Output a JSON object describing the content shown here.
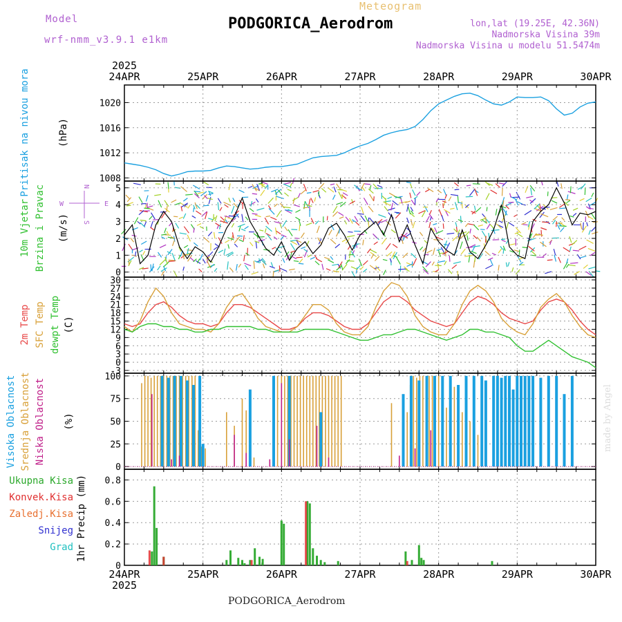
{
  "header": {
    "model_label": "Model",
    "model_run": "wrf-nmm_v3.9.1 e1km",
    "chart_type": "Meteogram",
    "station": "PODGORICA_Aerodrom",
    "lonlat": "lon,lat (19.25E, 42.36N)",
    "elevation": "Nadmorska Visina 39m",
    "model_elevation": "Nadmorska Visina u modelu 51.5474m"
  },
  "footer": {
    "station": "PODGORICA_Aerodrom"
  },
  "credit": "made by Angel",
  "colors": {
    "pressure": "#1aa0e0",
    "wind_speed": "#000000",
    "gust": "#e03030",
    "t2m": "#e84848",
    "tsfc": "#d8a038",
    "dewpt": "#30c030",
    "cloud_high": "#1aa0e0",
    "cloud_mid": "#d8a038",
    "cloud_low": "#c0208a",
    "precip_total": "#2aa82a",
    "precip_conv": "#e03030",
    "precip_frz": "#e87030",
    "snow": "#3030d0",
    "hail": "#20c0c0",
    "purple": "#b060d0"
  },
  "chart_data": [
    {
      "type": "line",
      "panel": "pressure",
      "ylabel_lines": [
        "Pritisak na nivou mora",
        "(hPa)"
      ],
      "yticks": [
        "1008",
        "1012",
        "1016",
        "1020"
      ],
      "ylim": [
        1007.5,
        1022.8
      ],
      "x_top_labels": [
        "24APR",
        "25APR",
        "26APR",
        "27APR",
        "28APR",
        "29APR",
        "30APR"
      ],
      "x_top_year": "2025",
      "series": [
        {
          "x": [
            0,
            0.1,
            0.2,
            0.3,
            0.4,
            0.5,
            0.6,
            0.7,
            0.8,
            0.9,
            1.0,
            1.1,
            1.2,
            1.3,
            1.4,
            1.5,
            1.6,
            1.7,
            1.8,
            1.9,
            2.0,
            2.1,
            2.2,
            2.3,
            2.4,
            2.5,
            2.6,
            2.7,
            2.8,
            2.9,
            3.0,
            3.1,
            3.2,
            3.3,
            3.4,
            3.5,
            3.6,
            3.7,
            3.8,
            3.9,
            4.0,
            4.1,
            4.2,
            4.3,
            4.4,
            4.5,
            4.6,
            4.7,
            4.8,
            4.9,
            5.0,
            5.1,
            5.2,
            5.3,
            5.4,
            5.5,
            5.6,
            5.7,
            5.8,
            5.9,
            6.0
          ],
          "values": [
            1010.4,
            1010.2,
            1010.0,
            1009.7,
            1009.3,
            1008.7,
            1008.3,
            1008.6,
            1009.0,
            1009.1,
            1009.1,
            1009.2,
            1009.6,
            1009.9,
            1009.8,
            1009.6,
            1009.4,
            1009.5,
            1009.7,
            1009.8,
            1009.8,
            1010.0,
            1010.2,
            1010.7,
            1011.2,
            1011.4,
            1011.5,
            1011.6,
            1012.0,
            1012.6,
            1013.1,
            1013.5,
            1014.1,
            1014.8,
            1015.2,
            1015.5,
            1015.7,
            1016.2,
            1017.3,
            1018.7,
            1019.8,
            1020.4,
            1021.0,
            1021.4,
            1021.5,
            1021.1,
            1020.4,
            1019.8,
            1019.6,
            1020.1,
            1020.9,
            1020.8,
            1020.8,
            1020.9,
            1020.3,
            1019.0,
            1018.0,
            1018.3,
            1019.3,
            1019.9,
            1020.1
          ]
        }
      ]
    },
    {
      "type": "line",
      "panel": "wind",
      "ylabel_lines": [
        "10m Vjetar",
        "Brzina i Pravac",
        "(m/s)"
      ],
      "compass": {
        "n": "N",
        "w": "W",
        "e": "E",
        "s": "S"
      },
      "yticks": [
        "0",
        "1",
        "2",
        "3",
        "4",
        "5"
      ],
      "ylim": [
        -0.3,
        5.4
      ],
      "series": [
        {
          "name": "speed",
          "x": [
            0,
            0.1,
            0.2,
            0.3,
            0.4,
            0.5,
            0.6,
            0.7,
            0.8,
            0.9,
            1.0,
            1.1,
            1.2,
            1.3,
            1.4,
            1.5,
            1.6,
            1.7,
            1.8,
            1.9,
            2.0,
            2.1,
            2.2,
            2.3,
            2.4,
            2.5,
            2.6,
            2.7,
            2.8,
            2.9,
            3.0,
            3.1,
            3.2,
            3.3,
            3.4,
            3.5,
            3.6,
            3.7,
            3.8,
            3.9,
            4.0,
            4.1,
            4.2,
            4.3,
            4.4,
            4.5,
            4.6,
            4.7,
            4.8,
            4.9,
            5.0,
            5.1,
            5.2,
            5.3,
            5.4,
            5.5,
            5.6,
            5.7,
            5.8,
            5.9,
            6.0
          ],
          "values": [
            2.2,
            2.8,
            0.5,
            1.0,
            2.8,
            3.6,
            3.0,
            1.5,
            0.8,
            1.5,
            1.2,
            0.6,
            1.5,
            2.6,
            3.3,
            4.4,
            3.0,
            2.2,
            1.4,
            1.0,
            1.8,
            0.7,
            1.4,
            1.8,
            1.1,
            1.6,
            2.6,
            2.9,
            2.2,
            1.3,
            2.2,
            2.6,
            3.0,
            2.2,
            3.4,
            1.8,
            2.8,
            1.6,
            0.5,
            2.6,
            1.8,
            1.3,
            1.0,
            2.5,
            1.2,
            0.8,
            1.6,
            2.5,
            4.0,
            1.5,
            1.0,
            0.8,
            3.0,
            3.6,
            4.0,
            5.0,
            4.1,
            2.8,
            3.5,
            3.4,
            3.6
          ]
        }
      ]
    },
    {
      "type": "line",
      "panel": "temperature",
      "ylabel_lines": [
        "2m Temp",
        "SFC Temp",
        "dewpt Temp",
        "(C)"
      ],
      "yticks": [
        "-3",
        "0",
        "3",
        "6",
        "9",
        "12",
        "15",
        "18",
        "21",
        "24",
        "27",
        "30"
      ],
      "ylim": [
        -4,
        31
      ],
      "x": [
        0,
        0.1,
        0.2,
        0.3,
        0.4,
        0.5,
        0.6,
        0.7,
        0.8,
        0.9,
        1.0,
        1.1,
        1.2,
        1.3,
        1.4,
        1.5,
        1.6,
        1.7,
        1.8,
        1.9,
        2.0,
        2.1,
        2.2,
        2.3,
        2.4,
        2.5,
        2.6,
        2.7,
        2.8,
        2.9,
        3.0,
        3.1,
        3.2,
        3.3,
        3.4,
        3.5,
        3.6,
        3.7,
        3.8,
        3.9,
        4.0,
        4.1,
        4.2,
        4.3,
        4.4,
        4.5,
        4.6,
        4.7,
        4.8,
        4.9,
        5.0,
        5.1,
        5.2,
        5.3,
        5.4,
        5.5,
        5.6,
        5.7,
        5.8,
        5.9,
        6.0
      ],
      "series": [
        {
          "name": "2m Temp",
          "values": [
            14,
            13,
            14,
            18,
            21,
            22,
            20,
            17,
            15,
            14,
            14,
            13,
            14,
            18,
            21,
            21,
            20,
            18,
            16,
            14,
            12,
            12,
            13,
            16,
            18,
            18,
            17,
            15,
            13,
            12,
            12,
            14,
            18,
            22,
            24,
            24,
            22,
            19,
            17,
            15,
            14,
            13,
            14,
            18,
            22,
            24,
            23,
            21,
            18,
            16,
            15,
            14,
            15,
            19,
            22,
            23,
            22,
            19,
            15,
            12,
            10
          ]
        },
        {
          "name": "SFC Temp",
          "values": [
            13,
            11,
            15,
            22,
            27,
            24,
            18,
            14,
            13,
            12,
            12,
            11,
            14,
            20,
            24,
            25,
            21,
            16,
            13,
            12,
            11,
            11,
            13,
            17,
            21,
            21,
            19,
            14,
            11,
            10,
            10,
            13,
            20,
            26,
            29,
            28,
            24,
            17,
            13,
            11,
            10,
            10,
            14,
            21,
            26,
            28,
            26,
            22,
            16,
            13,
            11,
            10,
            14,
            20,
            23,
            25,
            22,
            17,
            13,
            10,
            9
          ]
        },
        {
          "name": "dewpt Temp",
          "values": [
            12,
            11,
            13,
            14,
            14,
            13,
            13,
            12,
            12,
            11,
            11,
            12,
            12,
            13,
            13,
            13,
            13,
            12,
            12,
            11,
            11,
            11,
            11,
            12,
            12,
            12,
            12,
            11,
            10,
            9,
            8,
            8,
            9,
            10,
            10,
            11,
            12,
            12,
            11,
            10,
            9,
            8,
            9,
            10,
            12,
            12,
            11,
            11,
            10,
            9,
            6,
            4,
            4,
            6,
            8,
            6,
            4,
            2,
            1,
            0,
            -2
          ]
        }
      ]
    },
    {
      "type": "bar",
      "panel": "clouds",
      "ylabel_lines": [
        "Visoka Oblacnost",
        "Srednja Oblacnost",
        "Niska Oblacnost",
        "(%)"
      ],
      "yticks": [
        "0",
        "25",
        "50",
        "75",
        "100"
      ],
      "ylim": [
        -3,
        103
      ],
      "series": [
        {
          "name": "Srednja Oblacnost",
          "x": [
            0.22,
            0.26,
            0.3,
            0.34,
            0.38,
            0.42,
            0.46,
            0.5,
            0.54,
            0.58,
            0.62,
            0.66,
            0.7,
            0.74,
            0.78,
            0.82,
            0.86,
            0.9,
            0.94,
            0.98,
            1.03,
            1.3,
            1.4,
            1.5,
            1.55,
            1.6,
            1.65,
            1.85,
            1.9,
            1.95,
            2.0,
            2.04,
            2.08,
            2.12,
            2.16,
            2.2,
            2.24,
            2.28,
            2.32,
            2.36,
            2.4,
            2.44,
            2.48,
            2.52,
            2.56,
            2.6,
            2.64,
            2.68,
            2.72,
            2.76,
            3.4,
            3.6,
            3.64,
            3.68,
            3.72,
            3.76,
            3.8,
            3.84,
            3.88,
            3.92,
            3.96,
            4.0,
            4.1,
            4.2,
            4.3,
            4.4,
            4.5,
            4.6
          ],
          "values": [
            92,
            100,
            100,
            98,
            100,
            100,
            100,
            100,
            100,
            100,
            100,
            100,
            100,
            100,
            100,
            100,
            100,
            100,
            40,
            22,
            20,
            60,
            45,
            75,
            62,
            15,
            10,
            5,
            95,
            100,
            100,
            100,
            100,
            100,
            100,
            100,
            100,
            100,
            100,
            100,
            100,
            100,
            100,
            100,
            100,
            100,
            100,
            100,
            100,
            100,
            70,
            60,
            90,
            100,
            98,
            100,
            100,
            100,
            100,
            100,
            95,
            100,
            65,
            88,
            60,
            50,
            35,
            40
          ]
        },
        {
          "name": "Visoka Oblacnost",
          "x": [
            0.48,
            0.56,
            0.64,
            0.72,
            0.8,
            0.88,
            0.96,
            1.0,
            1.6,
            1.9,
            2.1,
            2.5,
            3.55,
            3.65,
            3.75,
            3.85,
            3.95,
            4.05,
            4.15,
            4.25,
            4.35,
            4.45,
            4.55,
            4.6,
            4.7,
            4.75,
            4.8,
            4.85,
            4.9,
            4.95,
            5.0,
            5.05,
            5.1,
            5.15,
            5.2,
            5.3,
            5.4,
            5.5,
            5.6,
            5.7
          ],
          "values": [
            100,
            98,
            100,
            100,
            95,
            90,
            100,
            25,
            85,
            100,
            100,
            60,
            80,
            100,
            95,
            100,
            100,
            100,
            100,
            90,
            100,
            100,
            100,
            95,
            100,
            100,
            98,
            100,
            100,
            85,
            100,
            100,
            100,
            100,
            100,
            98,
            100,
            100,
            80,
            100
          ]
        },
        {
          "name": "Niska Oblacnost",
          "x": [
            0.35,
            0.6,
            0.7,
            1.4,
            1.55,
            1.85,
            2.0,
            2.1,
            2.45,
            2.6,
            3.5,
            3.7,
            3.9
          ],
          "values": [
            80,
            8,
            12,
            35,
            15,
            8,
            92,
            30,
            45,
            10,
            12,
            20,
            40
          ]
        }
      ]
    },
    {
      "type": "bar",
      "panel": "precip",
      "ylabel_lines": [
        "1hr Precip (mm)"
      ],
      "legend": [
        "Ukupna Kisa",
        "Konvek.Kisa",
        "Zaledj.Kisa",
        "Snijeg",
        "Grad"
      ],
      "yticks": [
        "0",
        "0.2",
        "0.4",
        "0.6",
        "0.8"
      ],
      "ylim": [
        0,
        0.9
      ],
      "x_bottom_labels": [
        "24APR",
        "25APR",
        "26APR",
        "27APR",
        "28APR",
        "29APR",
        "30APR"
      ],
      "x_bottom_year": "2025",
      "series": [
        {
          "name": "Ukupna Kisa",
          "x": [
            0.35,
            0.38,
            0.41,
            0.5,
            1.3,
            1.35,
            1.45,
            1.5,
            1.53,
            1.6,
            1.66,
            1.72,
            1.76,
            2.0,
            2.03,
            2.33,
            2.36,
            2.4,
            2.45,
            2.5,
            2.55,
            2.72,
            3.58,
            3.66,
            3.75,
            3.78,
            3.81,
            4.68
          ],
          "values": [
            0.13,
            0.74,
            0.35,
            0.08,
            0.05,
            0.14,
            0.07,
            0.05,
            0.02,
            0.05,
            0.16,
            0.08,
            0.06,
            0.42,
            0.39,
            0.6,
            0.58,
            0.16,
            0.09,
            0.05,
            0.03,
            0.04,
            0.13,
            0.05,
            0.19,
            0.07,
            0.05,
            0.04
          ]
        },
        {
          "name": "Konvek.Kisa",
          "x": [
            0.32,
            0.5,
            1.62,
            2.31,
            3.6
          ],
          "values": [
            0.14,
            0.08,
            0.05,
            0.6,
            0.04
          ]
        }
      ]
    }
  ]
}
